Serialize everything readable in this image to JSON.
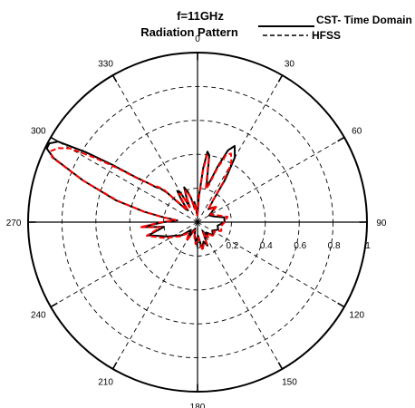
{
  "chart_data": {
    "type": "line",
    "projection": "polar",
    "title": "Radiation Pattern",
    "subtitle": "f=11GHz",
    "angle_zero": "top",
    "angle_direction": "clockwise",
    "angle_ticks": [
      0,
      30,
      60,
      90,
      120,
      150,
      180,
      210,
      240,
      270,
      300,
      330
    ],
    "angle_tick_labels": [
      "0",
      "30",
      "60",
      "90",
      "120",
      "150",
      "180",
      "210",
      "240",
      "270",
      "300",
      "330"
    ],
    "radial_ticks": [
      0,
      0.2,
      0.4,
      0.6,
      0.8,
      1
    ],
    "radial_tick_labels": [
      "0",
      "0.2",
      "0.4",
      "0.6",
      "0.8",
      "1"
    ],
    "rlim": [
      0,
      1
    ],
    "grid": true,
    "legend": "top-right",
    "colors": {
      "cst": "#000000",
      "hfss": "#ff0000",
      "grid": "#000000"
    },
    "series": [
      {
        "name": "CST- Time Domain",
        "style": "solid",
        "theta": [
          0,
          3,
          6,
          8,
          10,
          12,
          14,
          17,
          20,
          23,
          26,
          30,
          33,
          36,
          40,
          45,
          50,
          60,
          70,
          80,
          90,
          100,
          110,
          120,
          130,
          140,
          145,
          150,
          157,
          163,
          170,
          178,
          185,
          192,
          200,
          210,
          220,
          230,
          245,
          255,
          262,
          265,
          270,
          275,
          278,
          281,
          285,
          290,
          294,
          296,
          298,
          300,
          302,
          304,
          306,
          308,
          310,
          312,
          314,
          315,
          318,
          321,
          324,
          327,
          330,
          333,
          336,
          339,
          342,
          345,
          348,
          351,
          354,
          357,
          360
        ],
        "r": [
          0.05,
          0.15,
          0.32,
          0.42,
          0.4,
          0.28,
          0.22,
          0.25,
          0.35,
          0.46,
          0.5,
          0.44,
          0.3,
          0.15,
          0.1,
          0.12,
          0.14,
          0.08,
          0.1,
          0.16,
          0.16,
          0.12,
          0.13,
          0.1,
          0.12,
          0.08,
          0.1,
          0.06,
          0.15,
          0.12,
          0.16,
          0.08,
          0.12,
          0.08,
          0.04,
          0.12,
          0.06,
          0.12,
          0.2,
          0.3,
          0.2,
          0.33,
          0.2,
          0.12,
          0.2,
          0.32,
          0.5,
          0.72,
          0.93,
          0.99,
          0.99,
          0.95,
          0.78,
          0.6,
          0.45,
          0.38,
          0.32,
          0.3,
          0.25,
          0.18,
          0.1,
          0.09,
          0.16,
          0.22,
          0.2,
          0.1,
          0.16,
          0.22,
          0.19,
          0.15,
          0.08,
          0.12,
          0.09,
          0.04,
          0.05
        ]
      },
      {
        "name": "HFSS",
        "style": "dashed",
        "theta": [
          0,
          3,
          6,
          8,
          10,
          12,
          14,
          17,
          20,
          23,
          26,
          30,
          33,
          36,
          40,
          45,
          50,
          60,
          70,
          80,
          90,
          100,
          110,
          120,
          130,
          140,
          145,
          150,
          157,
          163,
          170,
          178,
          185,
          192,
          200,
          210,
          220,
          230,
          245,
          255,
          262,
          265,
          270,
          275,
          278,
          281,
          285,
          290,
          294,
          296,
          298,
          300,
          302,
          304,
          306,
          308,
          310,
          312,
          314,
          315,
          318,
          321,
          324,
          327,
          330,
          333,
          336,
          339,
          342,
          345,
          348,
          351,
          354,
          357,
          360
        ],
        "r": [
          0.04,
          0.14,
          0.3,
          0.4,
          0.38,
          0.26,
          0.2,
          0.23,
          0.33,
          0.43,
          0.45,
          0.4,
          0.27,
          0.14,
          0.1,
          0.11,
          0.15,
          0.09,
          0.12,
          0.18,
          0.16,
          0.14,
          0.15,
          0.11,
          0.13,
          0.09,
          0.11,
          0.07,
          0.14,
          0.13,
          0.17,
          0.09,
          0.13,
          0.09,
          0.05,
          0.13,
          0.08,
          0.13,
          0.22,
          0.31,
          0.22,
          0.34,
          0.21,
          0.13,
          0.21,
          0.32,
          0.49,
          0.72,
          0.94,
          0.96,
          0.93,
          0.87,
          0.72,
          0.57,
          0.44,
          0.38,
          0.33,
          0.31,
          0.27,
          0.2,
          0.12,
          0.09,
          0.14,
          0.2,
          0.19,
          0.1,
          0.15,
          0.2,
          0.18,
          0.14,
          0.08,
          0.11,
          0.09,
          0.04,
          0.04
        ]
      }
    ]
  }
}
